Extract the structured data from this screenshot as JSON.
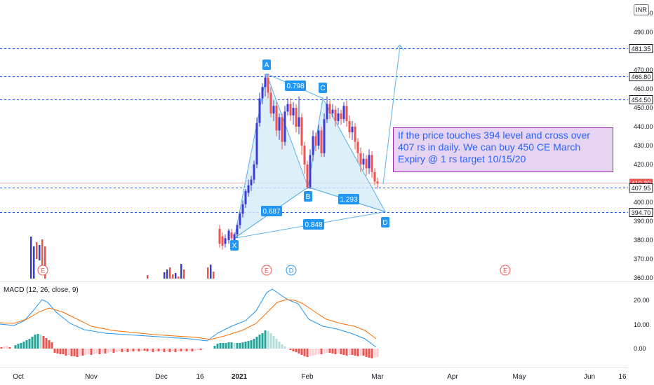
{
  "currency_badge": "INR",
  "annotation": {
    "text": "If the price touches 394 level and cross over 407 rs in daily. We can buy 450 CE March Expiry @ 1 rs target 10/15/20"
  },
  "colors": {
    "up": "#26a69a",
    "down": "#ef5350",
    "bullish_candle": "#3d3bd6",
    "pattern_fill": "#d4ecf9",
    "pattern_line": "#5cb1e8",
    "label_bg": "#2196f3",
    "macd_line": "#2196f3",
    "signal_line": "#ff6d00",
    "hist_up_strong": "#26a69a",
    "hist_up_weak": "#b2dfdb",
    "hist_down_strong": "#ef5350",
    "hist_down_weak": "#ffcdd2",
    "level_line": "#1e53e5",
    "note_bg": "#e7d4f1",
    "note_border": "#9c27b0"
  },
  "chart_data": {
    "type": "candlestick",
    "price_axis": {
      "ticks": [
        "490.00",
        "470.00",
        "460.00",
        "450.00",
        "440.00",
        "430.00",
        "420.00",
        "400.00",
        "390.00",
        "380.00",
        "370.00",
        "360.00"
      ],
      "partial_top_tick": "500.00"
    },
    "x_axis": {
      "labels": [
        "Oct",
        "Nov",
        "Dec",
        "16",
        "2021",
        "Feb",
        "Mar",
        "Apr",
        "May",
        "Jun",
        "16"
      ]
    },
    "levels": [
      {
        "label": "481.35",
        "value": 481.35,
        "style": "dashed"
      },
      {
        "label": "466.80",
        "value": 466.8,
        "style": "dashed"
      },
      {
        "label": "454.50",
        "value": 454.5,
        "style": "dashed"
      },
      {
        "label": "410.30",
        "value": 410.3,
        "style": "last-price"
      },
      {
        "label": "407.95",
        "value": 407.95,
        "style": "dashed"
      },
      {
        "label": "394.70",
        "value": 394.7,
        "style": "dashed"
      }
    ],
    "harmonic_pattern": {
      "points": [
        {
          "name": "X",
          "value": 381
        },
        {
          "name": "A",
          "value": 468
        },
        {
          "name": "B",
          "value": 408
        },
        {
          "name": "C",
          "value": 455
        },
        {
          "name": "D",
          "value": 395
        }
      ],
      "ratios": [
        "0.687",
        "0.798",
        "1.293",
        "0.848"
      ]
    },
    "event_markers": [
      "E",
      "E",
      "D",
      "E"
    ],
    "macd": {
      "title": "MACD (12, 26, close, 9)",
      "ticks": [
        "20.00",
        "10.00",
        "0.00"
      ],
      "series": [
        {
          "name": "MACD",
          "color": "#2196f3"
        },
        {
          "name": "Signal",
          "color": "#ff6d00"
        }
      ]
    }
  }
}
